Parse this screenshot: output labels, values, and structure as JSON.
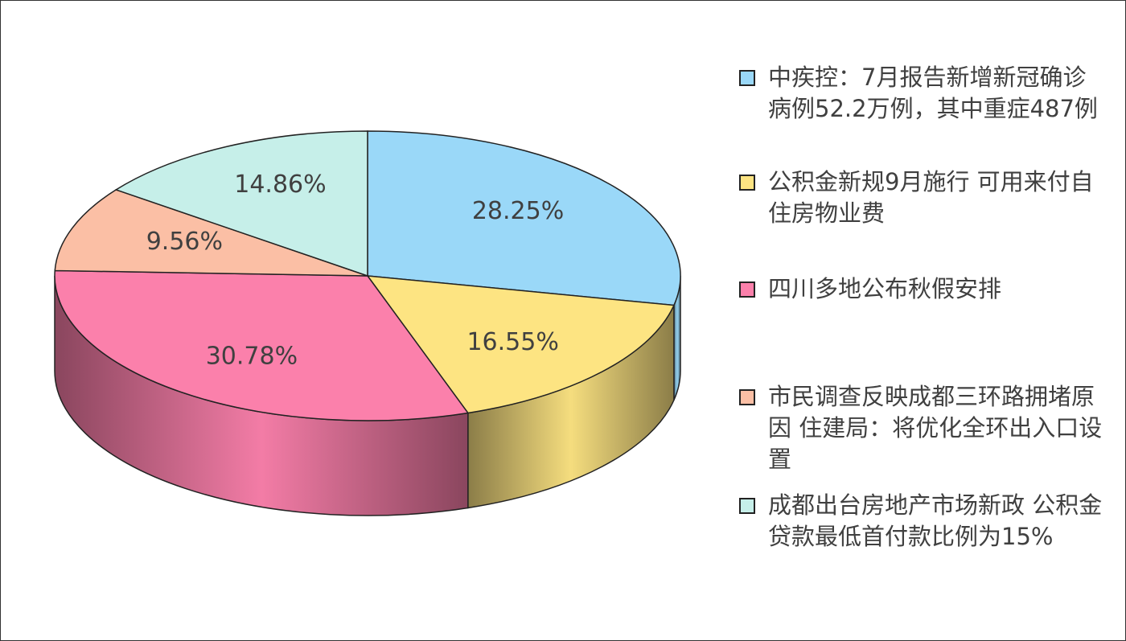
{
  "chart_data": {
    "type": "pie",
    "three_d": true,
    "legend": "right",
    "categories": [
      "中疾控：7月报告新增新冠确诊病例52.2万例，其中重症487例",
      "公积金新规9月施行 可用来付自住房物业费",
      "四川多地公布秋假安排",
      "市民调查反映成都三环路拥堵原因 住建局：将优化全环出入口设置",
      "成都出台房地产市场新政 公积金贷款最低首付款比例为15%"
    ],
    "values": [
      28.25,
      16.55,
      30.78,
      9.56,
      14.86
    ],
    "value_labels": [
      "28.25%",
      "16.55%",
      "30.78%",
      "9.56%",
      "14.86%"
    ],
    "colors": [
      "#9ad8f8",
      "#fde482",
      "#fb80ab",
      "#fbbfa5",
      "#c6efe9"
    ]
  }
}
